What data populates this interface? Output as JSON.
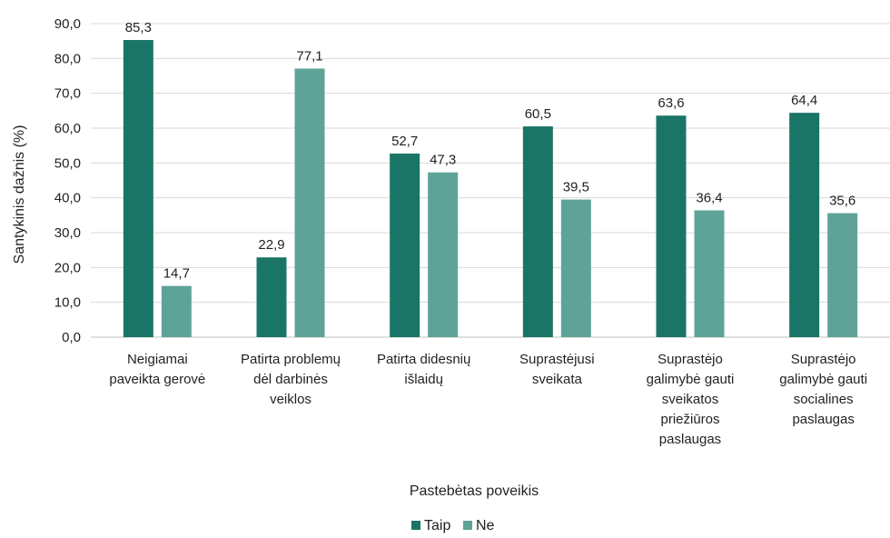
{
  "chart_data": {
    "type": "bar",
    "xlabel": "Pastebėtas poveikis",
    "ylabel": "Santykinis dažnis (%)",
    "ylim": [
      0,
      90
    ],
    "yticks": [
      "0,0",
      "10,0",
      "20,0",
      "30,0",
      "40,0",
      "50,0",
      "60,0",
      "70,0",
      "80,0",
      "90,0"
    ],
    "grid": true,
    "legend": "bottom",
    "categories": [
      [
        "Neigiamai",
        "paveikta gerovė"
      ],
      [
        "Patirta problemų",
        "dėl darbinės",
        "veiklos"
      ],
      [
        "Patirta didesnių",
        "išlaidų"
      ],
      [
        "Suprastėjusi",
        "sveikata"
      ],
      [
        "Suprastėjo",
        "galimybė gauti",
        "sveikatos",
        "priežiūros",
        "paslaugas"
      ],
      [
        "Suprastėjo",
        "galimybė gauti",
        "socialines",
        "paslaugas"
      ]
    ],
    "series": [
      {
        "name": "Taip",
        "color": "#1b7567",
        "values": [
          85.3,
          22.9,
          52.7,
          60.5,
          63.6,
          64.4
        ],
        "labels": [
          "85,3",
          "22,9",
          "52,7",
          "60,5",
          "63,6",
          "64,4"
        ]
      },
      {
        "name": "Ne",
        "color": "#5fa398",
        "values": [
          14.7,
          77.1,
          47.3,
          39.5,
          36.4,
          35.6
        ],
        "labels": [
          "14,7",
          "77,1",
          "47,3",
          "39,5",
          "36,4",
          "35,6"
        ]
      }
    ]
  }
}
